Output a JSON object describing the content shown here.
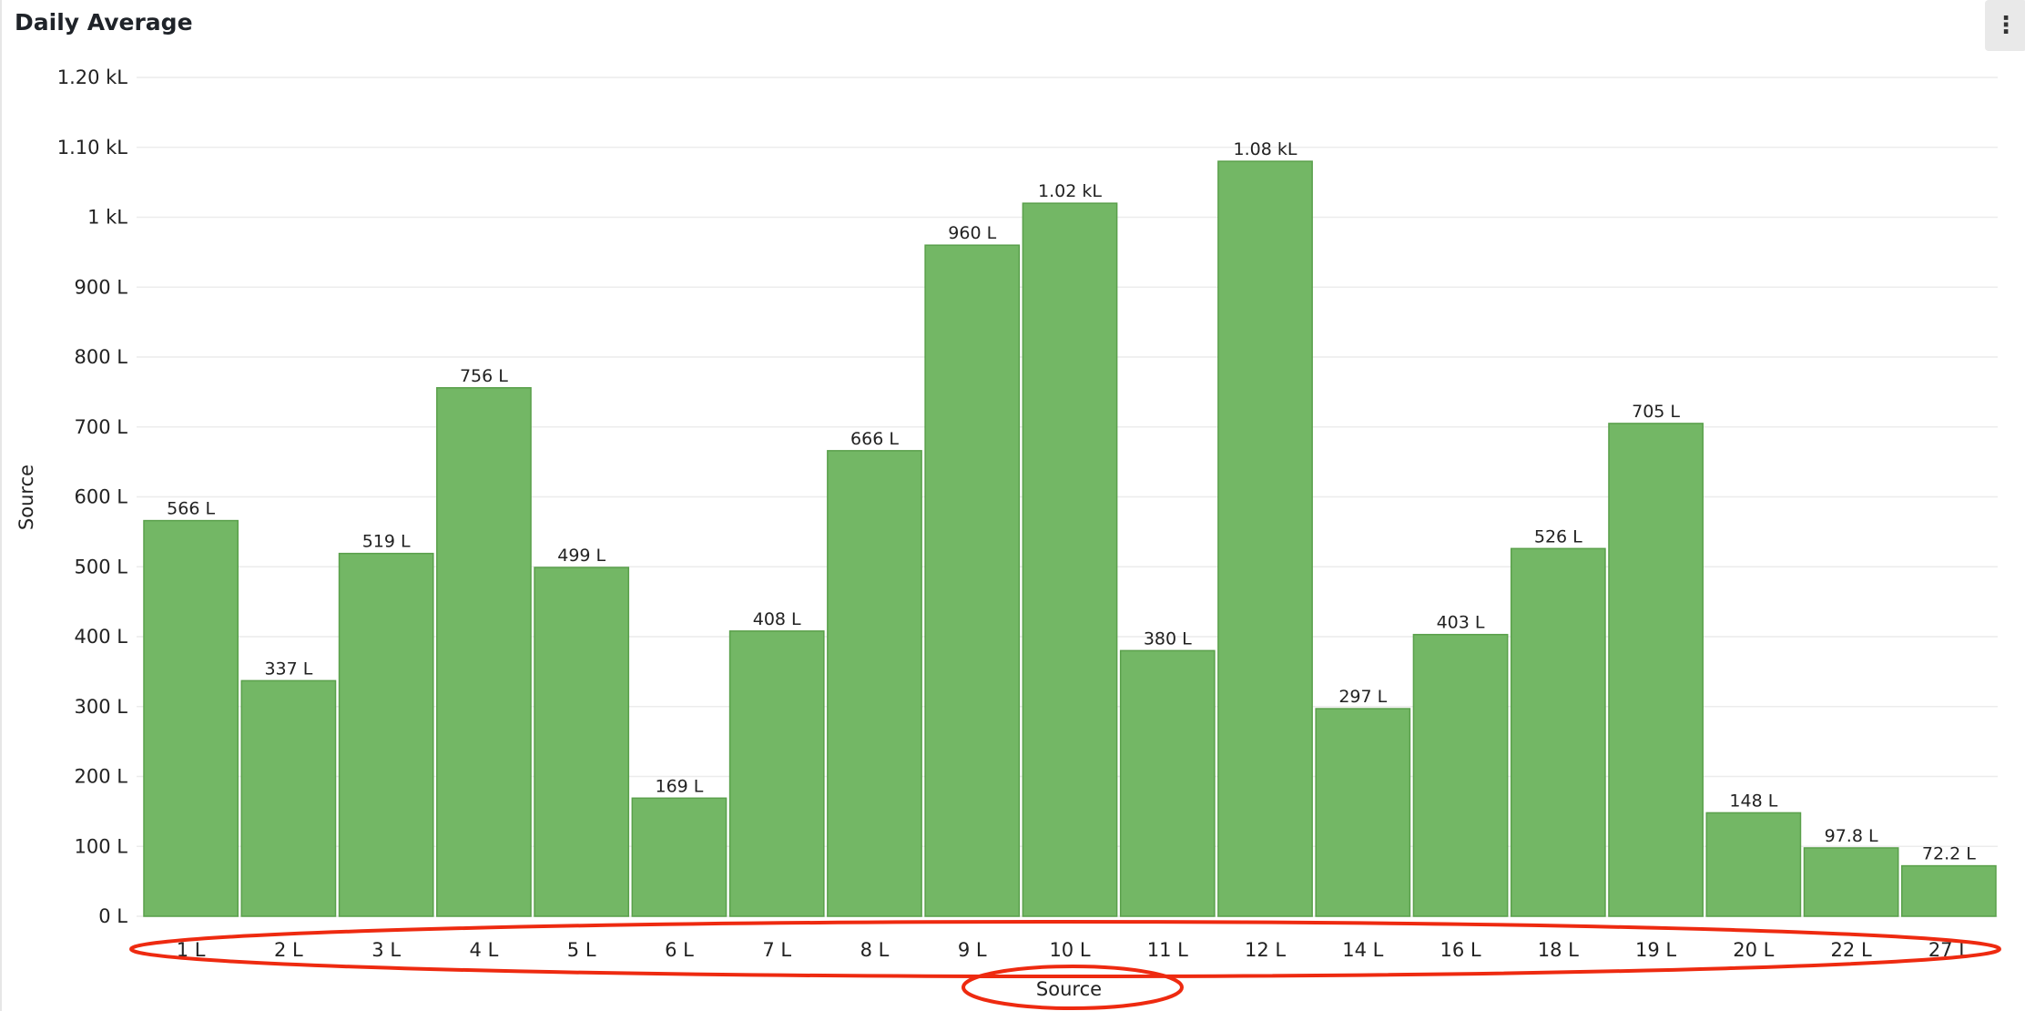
{
  "panel": {
    "title": "Daily Average",
    "menu_icon": "kebab-menu-icon"
  },
  "chart_data": {
    "type": "bar",
    "title": "Daily Average",
    "xlabel": "Source",
    "ylabel": "Source",
    "ylim": [
      0,
      1200
    ],
    "yticks": [
      0,
      100,
      200,
      300,
      400,
      500,
      600,
      700,
      800,
      900,
      1000,
      1100,
      1200
    ],
    "ytick_labels": [
      "0 L",
      "100 L",
      "200 L",
      "300 L",
      "400 L",
      "500 L",
      "600 L",
      "700 L",
      "800 L",
      "900 L",
      "1 kL",
      "1.10 kL",
      "1.20 kL"
    ],
    "categories": [
      "1 L",
      "2 L",
      "3 L",
      "4 L",
      "5 L",
      "6 L",
      "7 L",
      "8 L",
      "9 L",
      "10 L",
      "11 L",
      "12 L",
      "14 L",
      "16 L",
      "18 L",
      "19 L",
      "20 L",
      "22 L",
      "27 L"
    ],
    "values": [
      566,
      337,
      519,
      756,
      499,
      169,
      408,
      666,
      960,
      1020,
      380,
      1080,
      297,
      403,
      526,
      705,
      148,
      97.8,
      72.2
    ],
    "value_labels": [
      "566 L",
      "337 L",
      "519 L",
      "756 L",
      "499 L",
      "169 L",
      "408 L",
      "666 L",
      "960 L",
      "1.02 kL",
      "380 L",
      "1.08 kL",
      "297 L",
      "403 L",
      "526 L",
      "705 L",
      "148 L",
      "97.8 L",
      "72.2 L"
    ],
    "grid": true,
    "colors": {
      "bar_fill": "#73b765",
      "bar_stroke": "#5aa04b",
      "grid": "#ececec",
      "annotation": "#ee2a10"
    },
    "annotations": [
      "red-ellipse-x-tick-labels",
      "red-ellipse-x-axis-title"
    ]
  }
}
